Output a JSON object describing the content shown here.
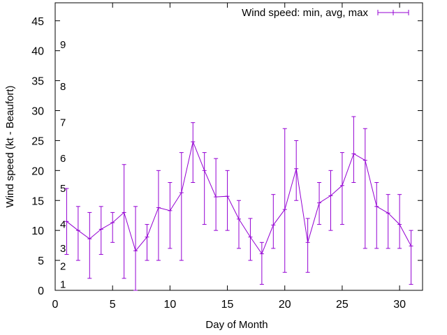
{
  "chart_data": {
    "type": "line",
    "title": "",
    "xlabel": "Day of Month",
    "ylabel": "Wind speed (kt - Beaufort)",
    "xlim": [
      0,
      32
    ],
    "ylim": [
      0,
      48
    ],
    "xticks": [
      0,
      5,
      10,
      15,
      20,
      25,
      30
    ],
    "yticks": [
      0,
      5,
      10,
      15,
      20,
      25,
      30,
      35,
      40,
      45
    ],
    "grid": false,
    "legend_position": "top-right",
    "color": "#9400d3",
    "series": [
      {
        "name": "Wind speed: min, avg, max",
        "x": [
          1,
          2,
          3,
          4,
          5,
          6,
          7,
          8,
          9,
          10,
          11,
          12,
          13,
          14,
          15,
          16,
          17,
          18,
          19,
          20,
          21,
          22,
          23,
          24,
          25,
          26,
          27,
          28,
          29,
          30,
          31
        ],
        "avg": [
          11.5,
          10,
          8.6,
          10.2,
          11.3,
          13,
          6.6,
          8.9,
          13.8,
          13.3,
          16.3,
          24.8,
          20,
          15.6,
          15.7,
          11.9,
          8.9,
          6.1,
          10.9,
          13.5,
          20.3,
          8,
          14.6,
          15.8,
          17.5,
          22.8,
          21.7,
          14,
          12.9,
          11,
          7.4
        ],
        "min": [
          6,
          5,
          2,
          6,
          8,
          2,
          0,
          5,
          5,
          7,
          5,
          18,
          11,
          10,
          10,
          7,
          5,
          1,
          7,
          3,
          15,
          3,
          11,
          10,
          11,
          18,
          7,
          7,
          7,
          7,
          1
        ],
        "max": [
          17,
          14,
          13,
          14,
          13,
          21,
          14,
          11,
          20,
          18,
          23,
          28,
          23,
          22,
          20,
          15,
          12,
          8,
          16,
          27,
          25,
          12,
          18,
          20,
          23,
          29,
          27,
          18,
          16,
          16,
          10
        ]
      }
    ],
    "beaufort_scale": [
      {
        "label": "1",
        "y": 1
      },
      {
        "label": "2",
        "y": 4
      },
      {
        "label": "3",
        "y": 7
      },
      {
        "label": "4",
        "y": 11
      },
      {
        "label": "5",
        "y": 17
      },
      {
        "label": "6",
        "y": 22
      },
      {
        "label": "7",
        "y": 28
      },
      {
        "label": "8",
        "y": 34
      },
      {
        "label": "9",
        "y": 41
      }
    ]
  }
}
